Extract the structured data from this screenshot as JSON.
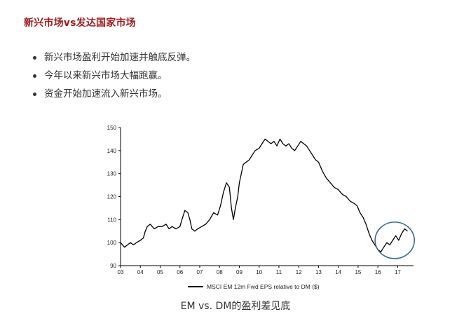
{
  "page": {
    "title": "新兴市场vs发达国家市场",
    "bullets": [
      "新兴市场盈利开始加速并触底反弹。",
      "今年以来新兴市场大幅跑赢。",
      "资金开始加速流入新兴市场。"
    ],
    "caption": "EM vs. DM的盈利差见底"
  },
  "chart_data": {
    "type": "line",
    "title": "",
    "xlabel": "",
    "ylabel": "",
    "x_ticks": [
      "03",
      "04",
      "05",
      "06",
      "07",
      "08",
      "09",
      "10",
      "11",
      "12",
      "13",
      "14",
      "15",
      "16",
      "17"
    ],
    "y_ticks": [
      90,
      100,
      110,
      120,
      130,
      140,
      150
    ],
    "xlim": [
      2003.0,
      2017.8
    ],
    "ylim": [
      90,
      150
    ],
    "grid": false,
    "legend_position": "bottom",
    "annotation": "circle around 2016–2017 trough",
    "series": [
      {
        "name": "MSCI EM 12m Fwd EPS relative to DM ($)",
        "color": "#000000",
        "x": [
          2003.0,
          2003.1,
          2003.2,
          2003.35,
          2003.5,
          2003.65,
          2003.8,
          2004.0,
          2004.15,
          2004.25,
          2004.35,
          2004.5,
          2004.7,
          2004.9,
          2005.1,
          2005.3,
          2005.45,
          2005.6,
          2005.8,
          2006.0,
          2006.1,
          2006.25,
          2006.4,
          2006.5,
          2006.6,
          2006.75,
          2006.9,
          2007.1,
          2007.3,
          2007.5,
          2007.7,
          2007.9,
          2008.05,
          2008.2,
          2008.35,
          2008.5,
          2008.6,
          2008.7,
          2008.8,
          2008.92,
          2009.0,
          2009.1,
          2009.2,
          2009.35,
          2009.5,
          2009.65,
          2009.8,
          2010.0,
          2010.15,
          2010.3,
          2010.45,
          2010.6,
          2010.75,
          2010.9,
          2011.05,
          2011.2,
          2011.35,
          2011.5,
          2011.65,
          2011.8,
          2011.95,
          2012.1,
          2012.25,
          2012.4,
          2012.55,
          2012.7,
          2012.85,
          2013.0,
          2013.2,
          2013.4,
          2013.6,
          2013.8,
          2014.0,
          2014.2,
          2014.4,
          2014.6,
          2014.8,
          2014.95,
          2015.1,
          2015.25,
          2015.4,
          2015.55,
          2015.7,
          2015.85,
          2016.0,
          2016.15,
          2016.3,
          2016.45,
          2016.6,
          2016.75,
          2016.9,
          2017.05,
          2017.2,
          2017.35,
          2017.5
        ],
        "values": [
          100,
          99,
          98,
          99,
          100,
          99,
          100,
          101,
          102,
          105,
          107,
          108,
          106,
          107,
          107,
          108,
          106,
          107,
          106,
          107,
          110,
          114,
          113,
          110,
          106,
          105,
          106,
          107,
          108,
          110,
          113,
          112,
          116,
          122,
          126,
          124,
          115,
          110,
          115,
          120,
          126,
          130,
          134,
          135,
          136,
          138,
          140,
          141,
          143,
          145,
          144,
          143,
          144,
          142,
          145,
          143,
          142,
          143,
          141,
          140,
          142,
          144,
          143,
          142,
          140,
          138,
          136,
          135,
          131,
          128,
          126,
          124,
          123,
          121,
          120,
          118,
          117,
          116,
          113,
          111,
          108,
          104,
          101,
          99,
          97,
          96,
          98,
          100,
          99,
          101,
          103,
          101,
          104,
          106,
          105
        ]
      }
    ]
  }
}
